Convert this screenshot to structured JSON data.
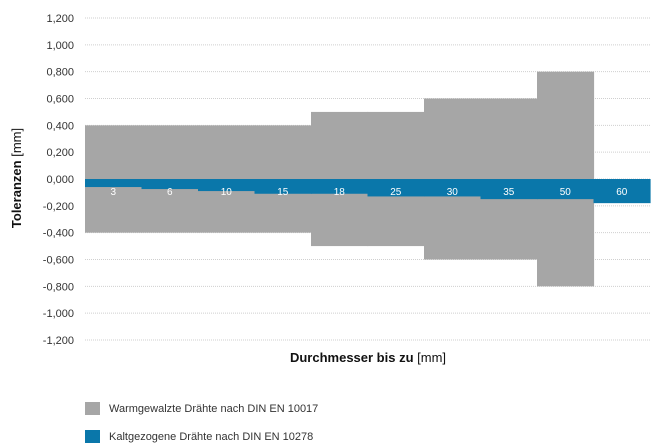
{
  "chart_data": {
    "type": "bar",
    "xlabel_bold": "Durchmesser bis zu",
    "xlabel_unit": "[mm]",
    "ylabel_bold": "Toleranzen",
    "ylabel_unit": "[mm]",
    "ylim": [
      -1.2,
      1.2
    ],
    "yticks": [
      "1,200",
      "1,000",
      "0,800",
      "0,600",
      "0,400",
      "0,200",
      "0,000",
      "-0,200",
      "-0,400",
      "-0,600",
      "-0,800",
      "-1,000",
      "-1,200"
    ],
    "categories": [
      "3",
      "6",
      "10",
      "15",
      "18",
      "25",
      "30",
      "35",
      "50",
      "60"
    ],
    "grid": true,
    "legend_position": "bottom-left",
    "series": [
      {
        "name": "Warmgewalzte Drähte nach DIN EN 10017",
        "color": "#a6a6a6",
        "upper": [
          0.4,
          0.4,
          0.4,
          0.4,
          0.5,
          0.5,
          0.6,
          0.6,
          0.8,
          null
        ],
        "lower": [
          -0.4,
          -0.4,
          -0.4,
          -0.4,
          -0.5,
          -0.5,
          -0.6,
          -0.6,
          -0.8,
          null
        ]
      },
      {
        "name": "Kaltgezogene Drähte nach DIN EN 10278",
        "color": "#0a77aa",
        "upper": [
          0,
          0,
          0,
          0,
          0,
          0,
          0,
          0,
          0,
          0
        ],
        "lower": [
          -0.06,
          -0.075,
          -0.09,
          -0.11,
          -0.11,
          -0.13,
          -0.13,
          -0.15,
          -0.15,
          -0.18
        ]
      }
    ]
  }
}
